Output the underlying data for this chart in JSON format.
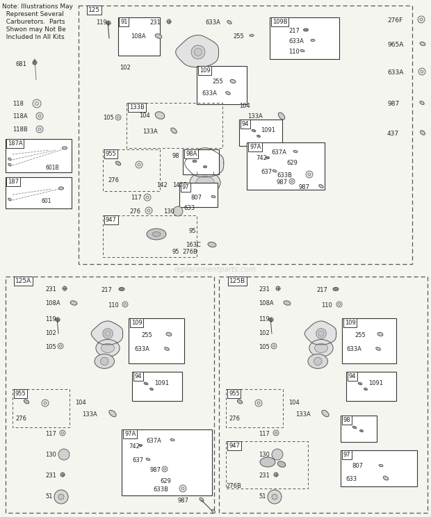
{
  "bg_color": "#f5f5f0",
  "note_text": [
    "Note: Illustrations May",
    "  Represent Several",
    "  Carburetors.  Parts",
    "  Shwon may Not Be",
    "  Included In All Kits"
  ],
  "watermark": "replacementparts.com"
}
